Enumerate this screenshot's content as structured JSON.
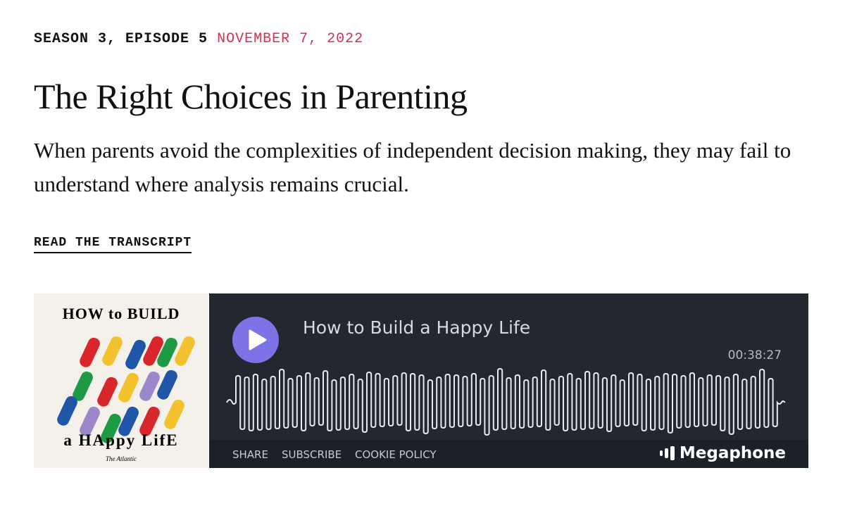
{
  "episode": {
    "season_episode": "SEASON 3, EPISODE 5",
    "date": "NOVEMBER 7, 2022",
    "title": "The Right Choices in Parenting",
    "description": "When parents avoid the complexities of independent decision making, they may fail to understand where analysis remains crucial.",
    "transcript_link": "READ THE TRANSCRIPT"
  },
  "artwork": {
    "line1": "HOW to BUILD",
    "line2": "a HAppy LifE",
    "publisher": "The Atlantic"
  },
  "player": {
    "title": "How to Build a Happy Life",
    "duration": "00:38:27",
    "footer_links": [
      "SHARE",
      "SUBSCRIBE",
      "COOKIE POLICY"
    ],
    "brand": "Megaphone",
    "icons": {
      "play": "play-icon",
      "brand": "megaphone-logo-icon"
    },
    "colors": {
      "background": "#222730",
      "play_button": "#7b73e6",
      "date": "#d6304f"
    }
  }
}
